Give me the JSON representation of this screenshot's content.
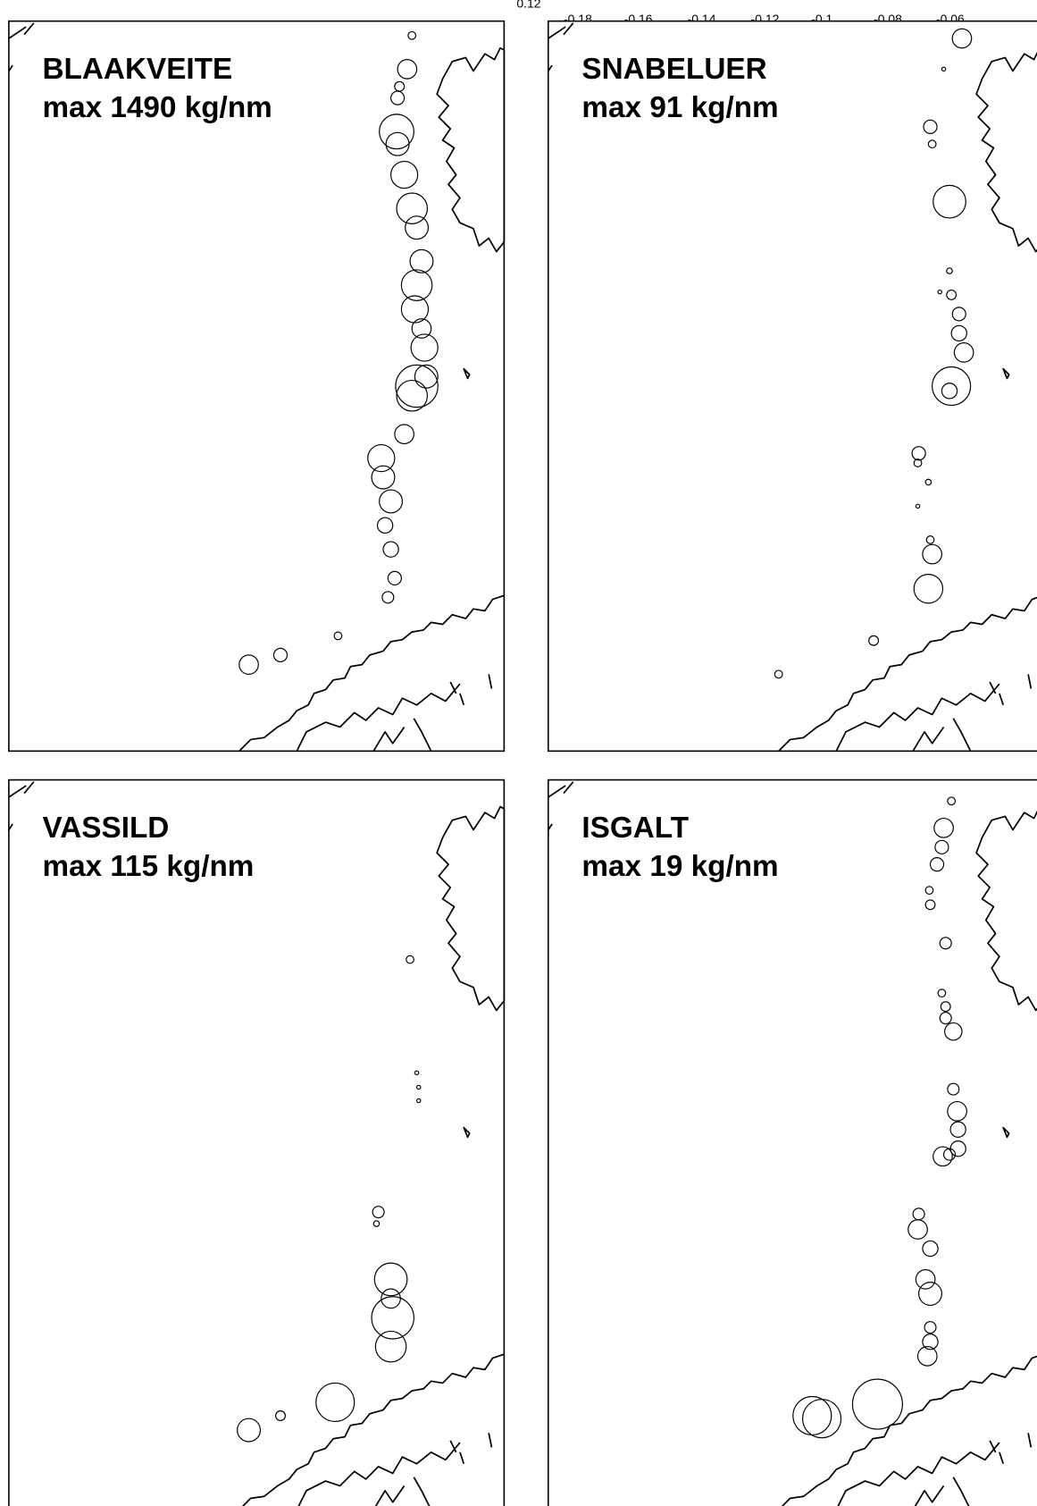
{
  "top_axis": {
    "labels": [
      "0.12",
      "-0.18",
      "-0.16",
      "-0.14",
      "-0.12",
      "-0.1",
      "-0.08",
      "-0.06"
    ]
  },
  "panels": [
    {
      "title": "BLAAKVEITE",
      "subtitle": "max 1490 kg/nm"
    },
    {
      "title": "SNABELUER",
      "subtitle": "max 91 kg/nm"
    },
    {
      "title": "VASSILD",
      "subtitle": "max 115 kg/nm"
    },
    {
      "title": "ISGALT",
      "subtitle": "max 19 kg/nm"
    }
  ]
}
